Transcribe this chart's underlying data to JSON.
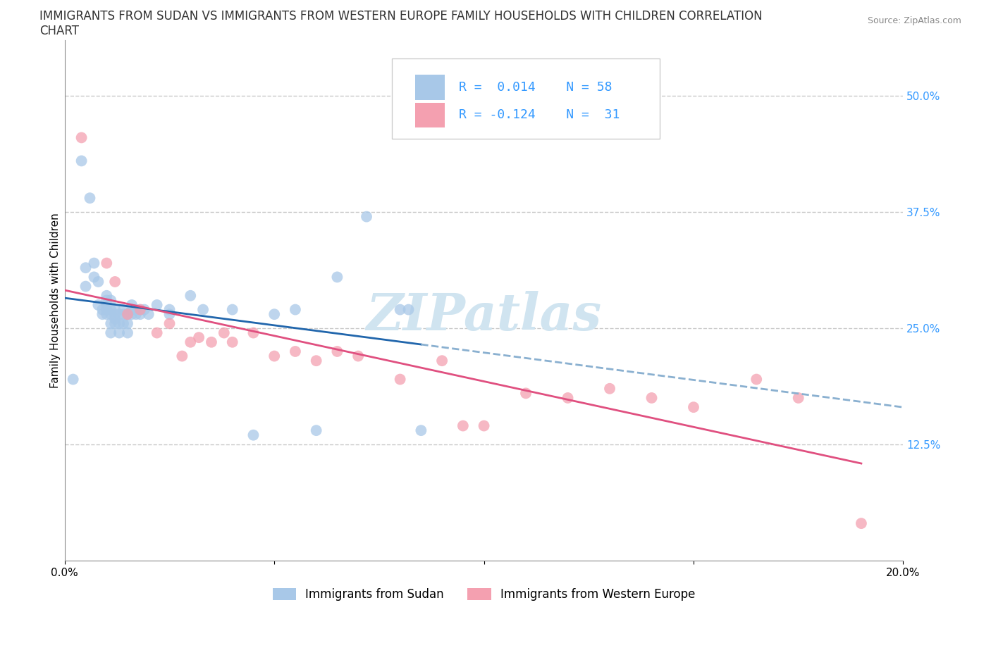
{
  "title_line1": "IMMIGRANTS FROM SUDAN VS IMMIGRANTS FROM WESTERN EUROPE FAMILY HOUSEHOLDS WITH CHILDREN CORRELATION",
  "title_line2": "CHART",
  "source_text": "Source: ZipAtlas.com",
  "ylabel": "Family Households with Children",
  "xlim": [
    0.0,
    0.2
  ],
  "ylim": [
    0.0,
    0.56
  ],
  "xticks": [
    0.0,
    0.05,
    0.1,
    0.15,
    0.2
  ],
  "xticklabels": [
    "0.0%",
    "",
    "",
    "",
    "20.0%"
  ],
  "ytick_positions": [
    0.125,
    0.25,
    0.375,
    0.5
  ],
  "ytick_labels": [
    "12.5%",
    "25.0%",
    "37.5%",
    "50.0%"
  ],
  "grid_color": "#c8c8c8",
  "grid_style": "--",
  "legend_R1": "R =  0.014",
  "legend_N1": "N = 58",
  "legend_R2": "R = -0.124",
  "legend_N2": "N =  31",
  "blue_scatter_color": "#a8c8e8",
  "blue_line_color": "#2166ac",
  "blue_line_dash_color": "#8ab0d0",
  "pink_scatter_color": "#f4a0b0",
  "pink_line_color": "#e05080",
  "legend_label1": "Immigrants from Sudan",
  "legend_label2": "Immigrants from Western Europe",
  "watermark": "ZIPatlas",
  "watermark_color": "#d0e4f0",
  "title_fontsize": 12,
  "axis_label_fontsize": 11,
  "tick_fontsize": 11,
  "tick_color": "#3399ff",
  "sudan_x": [
    0.002,
    0.004,
    0.005,
    0.005,
    0.006,
    0.007,
    0.007,
    0.008,
    0.008,
    0.009,
    0.009,
    0.01,
    0.01,
    0.01,
    0.01,
    0.01,
    0.011,
    0.011,
    0.011,
    0.011,
    0.011,
    0.012,
    0.012,
    0.012,
    0.012,
    0.013,
    0.013,
    0.013,
    0.014,
    0.014,
    0.014,
    0.015,
    0.015,
    0.015,
    0.016,
    0.016,
    0.016,
    0.017,
    0.017,
    0.018,
    0.018,
    0.019,
    0.02,
    0.022,
    0.025,
    0.025,
    0.03,
    0.033,
    0.04,
    0.045,
    0.05,
    0.055,
    0.06,
    0.065,
    0.072,
    0.08,
    0.082,
    0.085
  ],
  "sudan_y": [
    0.195,
    0.43,
    0.295,
    0.315,
    0.39,
    0.305,
    0.32,
    0.275,
    0.3,
    0.265,
    0.27,
    0.265,
    0.27,
    0.275,
    0.28,
    0.285,
    0.245,
    0.255,
    0.265,
    0.27,
    0.28,
    0.255,
    0.26,
    0.265,
    0.27,
    0.245,
    0.255,
    0.265,
    0.255,
    0.265,
    0.27,
    0.245,
    0.255,
    0.265,
    0.265,
    0.27,
    0.275,
    0.265,
    0.27,
    0.265,
    0.27,
    0.27,
    0.265,
    0.275,
    0.265,
    0.27,
    0.285,
    0.27,
    0.27,
    0.135,
    0.265,
    0.27,
    0.14,
    0.305,
    0.37,
    0.27,
    0.27,
    0.14
  ],
  "europe_x": [
    0.004,
    0.01,
    0.012,
    0.015,
    0.018,
    0.022,
    0.025,
    0.028,
    0.03,
    0.032,
    0.035,
    0.038,
    0.04,
    0.045,
    0.05,
    0.055,
    0.06,
    0.065,
    0.07,
    0.08,
    0.09,
    0.095,
    0.1,
    0.11,
    0.12,
    0.13,
    0.14,
    0.15,
    0.165,
    0.175,
    0.19
  ],
  "europe_y": [
    0.455,
    0.32,
    0.3,
    0.265,
    0.27,
    0.245,
    0.255,
    0.22,
    0.235,
    0.24,
    0.235,
    0.245,
    0.235,
    0.245,
    0.22,
    0.225,
    0.215,
    0.225,
    0.22,
    0.195,
    0.215,
    0.145,
    0.145,
    0.18,
    0.175,
    0.185,
    0.175,
    0.165,
    0.195,
    0.175,
    0.04
  ]
}
